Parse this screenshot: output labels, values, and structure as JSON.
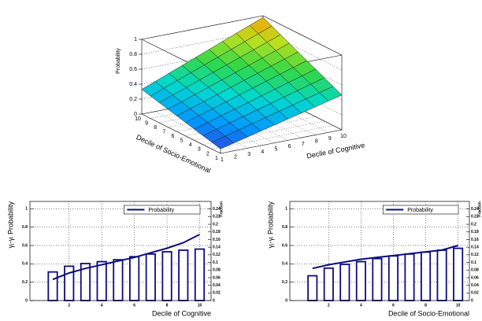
{
  "chart_data": [
    {
      "type": "surface",
      "zlabel": "Probability",
      "xlabel": "Decile of Cognitive",
      "ylabel": "Decile of Socio-Emotional",
      "x": [
        1,
        2,
        3,
        4,
        5,
        6,
        7,
        8,
        9,
        10
      ],
      "y": [
        1,
        2,
        3,
        4,
        5,
        6,
        7,
        8,
        9,
        10
      ],
      "z": [
        [
          0.06,
          0.105,
          0.15,
          0.195,
          0.24,
          0.285,
          0.33,
          0.375,
          0.42,
          0.465
        ],
        [
          0.09,
          0.138,
          0.186,
          0.234,
          0.282,
          0.33,
          0.378,
          0.426,
          0.474,
          0.522
        ],
        [
          0.12,
          0.171,
          0.222,
          0.273,
          0.324,
          0.375,
          0.426,
          0.477,
          0.528,
          0.579
        ],
        [
          0.15,
          0.204,
          0.258,
          0.312,
          0.366,
          0.42,
          0.474,
          0.528,
          0.582,
          0.636
        ],
        [
          0.18,
          0.237,
          0.294,
          0.351,
          0.408,
          0.465,
          0.522,
          0.579,
          0.636,
          0.693
        ],
        [
          0.21,
          0.27,
          0.33,
          0.39,
          0.45,
          0.51,
          0.57,
          0.63,
          0.69,
          0.75
        ],
        [
          0.24,
          0.303,
          0.366,
          0.429,
          0.492,
          0.555,
          0.618,
          0.681,
          0.744,
          0.807
        ],
        [
          0.27,
          0.336,
          0.402,
          0.468,
          0.534,
          0.6,
          0.666,
          0.732,
          0.798,
          0.864
        ],
        [
          0.3,
          0.369,
          0.438,
          0.507,
          0.576,
          0.645,
          0.714,
          0.783,
          0.852,
          0.921
        ],
        [
          0.33,
          0.402,
          0.474,
          0.546,
          0.618,
          0.69,
          0.762,
          0.834,
          0.906,
          0.978
        ]
      ],
      "xlim": [
        1,
        10
      ],
      "ylim": [
        1,
        10
      ],
      "zlim": [
        0,
        1
      ],
      "xticks": [
        1,
        2,
        3,
        4,
        5,
        6,
        7,
        8,
        9,
        10
      ],
      "yticks": [
        1,
        2,
        3,
        4,
        5,
        6,
        7,
        8,
        9,
        10
      ],
      "zticks": [
        0,
        0.2,
        0.4,
        0.6,
        0.8,
        1
      ],
      "colormap": [
        "#3a2cd0",
        "#0098ff",
        "#00d8d0",
        "#30d848",
        "#b8e020",
        "#ff9c00"
      ],
      "grid": true
    },
    {
      "type": "bar-line",
      "xlabel": "Decile of Cognitive",
      "ylabel": "γⱼ-γᵢ Probability",
      "y2label": "Fraction",
      "x": [
        1,
        2,
        3,
        4,
        5,
        6,
        7,
        8,
        9,
        10
      ],
      "series": [
        {
          "name": "Probability",
          "color": "#0c0c80",
          "values": [
            0.23,
            0.3,
            0.35,
            0.39,
            0.43,
            0.47,
            0.52,
            0.57,
            0.63,
            0.72
          ]
        }
      ],
      "bars": {
        "color": "#0c0c80",
        "axis": "y2",
        "values": [
          0.075,
          0.09,
          0.097,
          0.102,
          0.107,
          0.115,
          0.122,
          0.128,
          0.132,
          0.135
        ]
      },
      "xlim": [
        -0.4,
        10.7
      ],
      "ylim": [
        0,
        1.08
      ],
      "y2lim": [
        0,
        0.26
      ],
      "xticks": [
        2,
        4,
        6,
        8,
        10
      ],
      "yticks": [
        0,
        0.2,
        0.4,
        0.6,
        0.8,
        1
      ],
      "y2ticks": [
        0,
        0.02,
        0.04,
        0.06,
        0.08,
        0.1,
        0.12,
        0.14,
        0.16,
        0.18,
        0.2,
        0.22,
        0.24
      ],
      "grid": true,
      "legend": "top-right"
    },
    {
      "type": "bar-line",
      "xlabel": "Decile of Socio-Emotional",
      "ylabel": "γⱼ-γᵢ Probability",
      "y2label": "Fraction",
      "x": [
        1,
        2,
        3,
        4,
        5,
        6,
        7,
        8,
        9,
        10
      ],
      "series": [
        {
          "name": "Probability",
          "color": "#0c0c80",
          "values": [
            0.35,
            0.39,
            0.42,
            0.45,
            0.47,
            0.49,
            0.51,
            0.53,
            0.55,
            0.6
          ]
        }
      ],
      "bars": {
        "color": "#0c0c80",
        "axis": "y2",
        "values": [
          0.065,
          0.085,
          0.095,
          0.102,
          0.11,
          0.117,
          0.122,
          0.127,
          0.132,
          0.137
        ]
      },
      "xlim": [
        -0.4,
        10.7
      ],
      "ylim": [
        0,
        1.08
      ],
      "y2lim": [
        0,
        0.26
      ],
      "xticks": [
        2,
        4,
        6,
        8,
        10
      ],
      "yticks": [
        0,
        0.2,
        0.4,
        0.6,
        0.8,
        1
      ],
      "y2ticks": [
        0,
        0.02,
        0.04,
        0.06,
        0.08,
        0.1,
        0.12,
        0.14,
        0.16,
        0.18,
        0.2,
        0.22,
        0.24
      ],
      "grid": true,
      "legend": "top-right"
    }
  ]
}
